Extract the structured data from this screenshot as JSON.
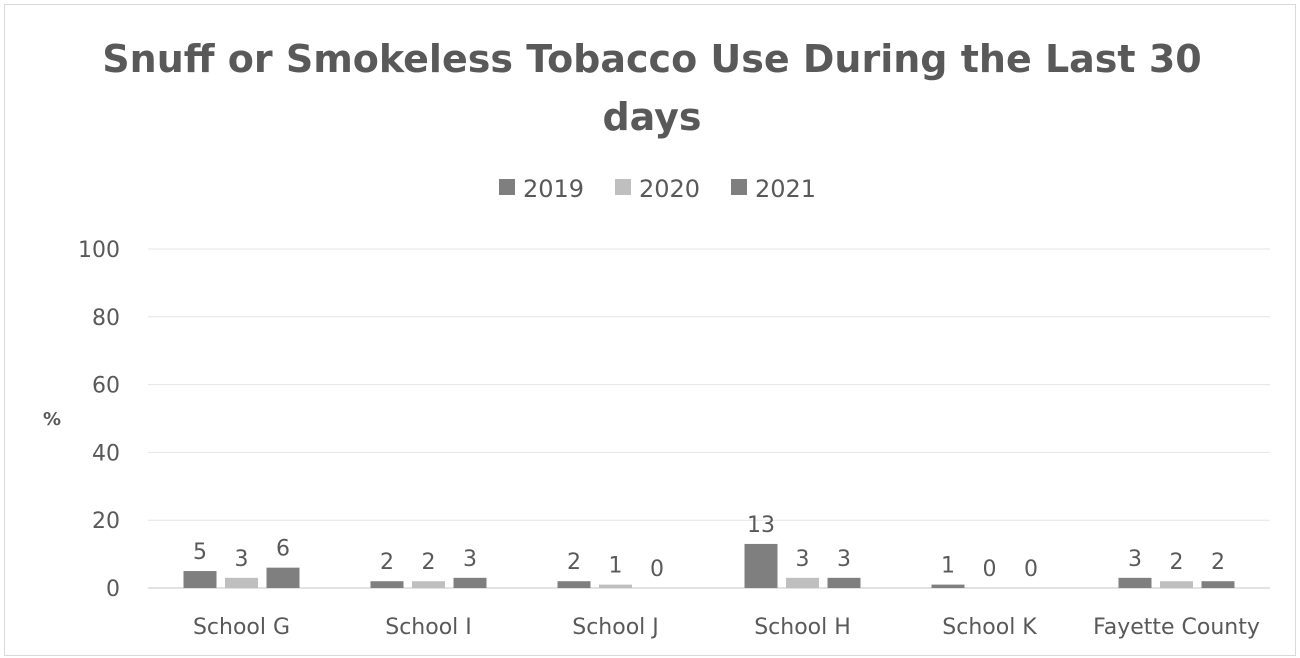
{
  "chart_data": {
    "type": "bar",
    "title_line1": "Snuff or Smokeless Tobacco Use During the Last 30",
    "title_line2": "days",
    "ylabel": "%",
    "xlabel": "",
    "ylim": [
      0,
      100
    ],
    "yticks": [
      "0",
      "20",
      "40",
      "60",
      "80",
      "100"
    ],
    "ytick_values": [
      0,
      20,
      40,
      60,
      80,
      100
    ],
    "grid": true,
    "legend_position": "top",
    "categories": [
      "School G",
      "School I",
      "School J",
      "School H",
      "School K",
      "Fayette County"
    ],
    "series": [
      {
        "name": "2019",
        "color": "#7f7f7f",
        "values": [
          5,
          2,
          2,
          13,
          1,
          3
        ]
      },
      {
        "name": "2020",
        "color": "#bfbfbf",
        "values": [
          3,
          2,
          1,
          3,
          0,
          2
        ]
      },
      {
        "name": "2021",
        "color": "#7f7f7f",
        "values": [
          6,
          3,
          0,
          3,
          0,
          2
        ]
      }
    ],
    "data_labels": [
      [
        "5",
        "2",
        "2",
        "13",
        "1",
        "3"
      ],
      [
        "3",
        "2",
        "1",
        "3",
        "0",
        "2"
      ],
      [
        "6",
        "3",
        "0",
        "3",
        "0",
        "2"
      ]
    ]
  }
}
